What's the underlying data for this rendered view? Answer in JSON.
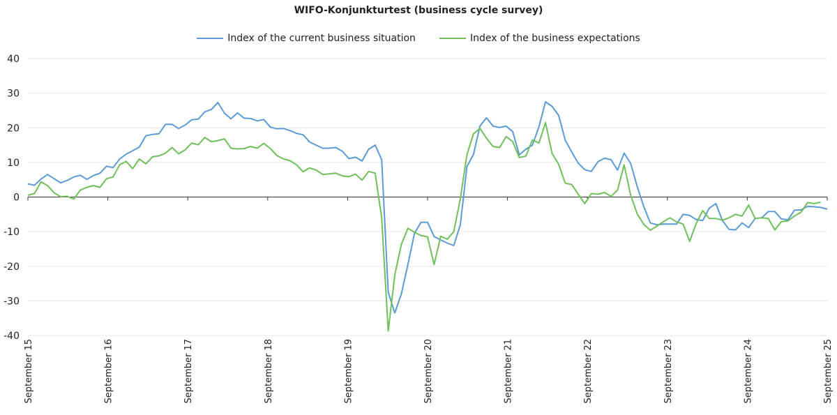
{
  "chart_data": {
    "type": "line",
    "title": "WIFO-Konjunkturtest (business cycle survey)",
    "xlabel": "",
    "ylabel": "",
    "ylim": [
      -40,
      40
    ],
    "yticks": [
      "40",
      "30",
      "20",
      "10",
      "0",
      "-10",
      "-20",
      "-30",
      "-40"
    ],
    "x_tick_labels": [
      "September 15",
      "September 16",
      "September 17",
      "September 18",
      "September 19",
      "September 20",
      "September 21",
      "September 22",
      "September 23",
      "September 24",
      "September 25"
    ],
    "x_start": "2015-09",
    "x_end": "2025-09",
    "grid": "horizontal",
    "legend_position": "top",
    "series": [
      {
        "name": "Index of the current business situation",
        "color": "#5b9bd5",
        "values": [
          3.8,
          3.4,
          5.2,
          6.5,
          5.3,
          4.1,
          4.8,
          5.8,
          6.3,
          5.1,
          6.2,
          6.9,
          8.9,
          8.5,
          11.0,
          12.4,
          13.4,
          14.4,
          17.7,
          18.1,
          18.3,
          21.0,
          21.0,
          19.8,
          20.8,
          22.3,
          22.5,
          24.6,
          25.3,
          27.3,
          24.2,
          22.6,
          24.3,
          22.8,
          22.7,
          22.0,
          22.4,
          20.2,
          19.7,
          19.8,
          19.2,
          18.4,
          18.0,
          15.9,
          15.0,
          14.1,
          14.1,
          14.3,
          13.2,
          11.1,
          11.5,
          10.4,
          13.8,
          15.0,
          10.8,
          -27.5,
          -33.5,
          -28.0,
          -19.5,
          -10.5,
          -7.3,
          -7.3,
          -11.4,
          -12.4,
          -13.3,
          -14.0,
          -8.0,
          8.8,
          12.3,
          20.5,
          22.9,
          20.5,
          20.1,
          20.5,
          18.9,
          12.2,
          13.8,
          15.0,
          20.3,
          27.5,
          26.2,
          23.6,
          16.5,
          13.0,
          9.8,
          7.9,
          7.4,
          10.2,
          11.2,
          10.8,
          7.8,
          12.7,
          9.7,
          3.0,
          -2.8,
          -7.5,
          -8.0,
          -7.8,
          -7.8,
          -7.8,
          -5.0,
          -5.3,
          -6.5,
          -6.8,
          -3.2,
          -1.9,
          -6.8,
          -9.3,
          -9.5,
          -7.5,
          -8.8,
          -6.2,
          -6.0,
          -4.2,
          -4.2,
          -6.3,
          -6.6,
          -3.8,
          -3.7,
          -2.7,
          -2.8,
          -3.0,
          -3.5
        ]
      },
      {
        "name": "Index of the business expectations",
        "color": "#70c05a",
        "values": [
          0.5,
          1.0,
          4.4,
          3.3,
          1.2,
          0.1,
          0.2,
          -0.6,
          2.0,
          2.8,
          3.3,
          2.8,
          5.3,
          5.8,
          9.3,
          10.3,
          8.2,
          11.0,
          9.6,
          11.6,
          11.9,
          12.7,
          14.3,
          12.5,
          13.6,
          15.6,
          15.1,
          17.2,
          16.0,
          16.3,
          16.8,
          14.1,
          13.9,
          14.0,
          14.6,
          14.1,
          15.5,
          14.0,
          12.0,
          11.0,
          10.5,
          9.3,
          7.3,
          8.4,
          7.8,
          6.5,
          6.7,
          6.9,
          6.1,
          5.9,
          6.6,
          4.9,
          7.4,
          6.9,
          -6.0,
          -38.7,
          -22.5,
          -13.7,
          -9.0,
          -10.2,
          -11.1,
          -11.5,
          -19.5,
          -11.3,
          -12.2,
          -10.0,
          -0.5,
          12.2,
          18.3,
          19.8,
          17.0,
          14.6,
          14.3,
          17.5,
          16.0,
          11.4,
          11.8,
          16.5,
          15.6,
          21.5,
          12.6,
          9.5,
          4.0,
          3.6,
          0.8,
          -1.9,
          1.0,
          0.8,
          1.3,
          0.2,
          2.0,
          9.3,
          0.5,
          -4.9,
          -7.9,
          -9.6,
          -8.4,
          -7.1,
          -6.0,
          -7.2,
          -7.8,
          -12.8,
          -7.7,
          -3.9,
          -6.2,
          -6.2,
          -6.7,
          -6.0,
          -5.0,
          -5.5,
          -2.3,
          -6.2,
          -6.0,
          -6.2,
          -9.5,
          -7.1,
          -6.9,
          -5.5,
          -4.4,
          -1.6,
          -1.9,
          -1.5
        ]
      }
    ]
  }
}
